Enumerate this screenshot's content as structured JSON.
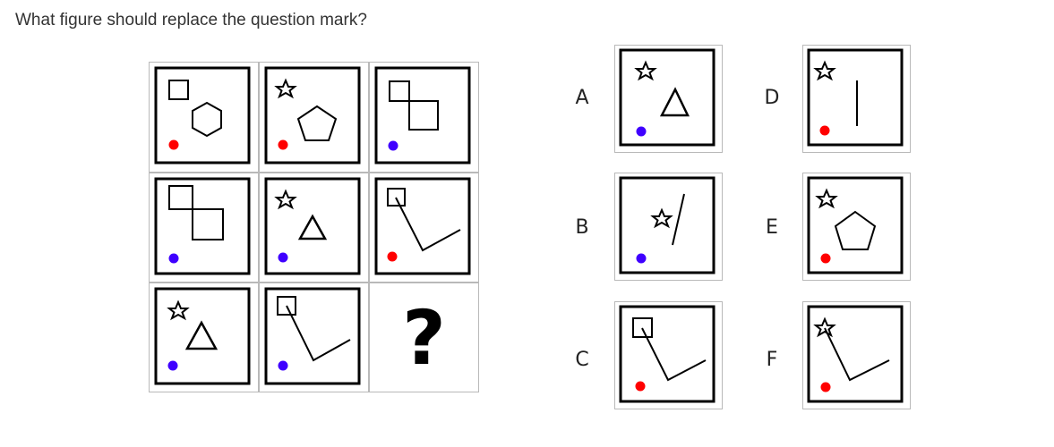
{
  "question": "What figure should replace the question mark?",
  "grid": {
    "missing_symbol": "?",
    "cells": [
      {
        "position": "row1-col1",
        "shapes": [
          "small-square",
          "hexagon",
          "red-dot"
        ]
      },
      {
        "position": "row1-col2",
        "shapes": [
          "star",
          "pentagon",
          "red-dot"
        ]
      },
      {
        "position": "row1-col3",
        "shapes": [
          "two-linked-squares",
          "blue-dot"
        ]
      },
      {
        "position": "row2-col1",
        "shapes": [
          "two-linked-squares",
          "blue-dot"
        ]
      },
      {
        "position": "row2-col2",
        "shapes": [
          "star",
          "triangle",
          "blue-dot"
        ]
      },
      {
        "position": "row2-col3",
        "shapes": [
          "small-square",
          "v-line",
          "red-dot"
        ]
      },
      {
        "position": "row3-col1",
        "shapes": [
          "star",
          "triangle",
          "blue-dot"
        ]
      },
      {
        "position": "row3-col2",
        "shapes": [
          "small-square",
          "v-line",
          "blue-dot"
        ]
      },
      {
        "position": "row3-col3",
        "shapes": [
          "question-mark"
        ]
      }
    ]
  },
  "options": [
    {
      "label": "A",
      "shapes": [
        "star",
        "triangle",
        "blue-dot"
      ]
    },
    {
      "label": "B",
      "shapes": [
        "star",
        "slash-line",
        "blue-dot"
      ]
    },
    {
      "label": "C",
      "shapes": [
        "small-square",
        "v-line",
        "red-dot"
      ]
    },
    {
      "label": "D",
      "shapes": [
        "star",
        "vertical-line",
        "red-dot"
      ]
    },
    {
      "label": "E",
      "shapes": [
        "star",
        "pentagon",
        "red-dot"
      ]
    },
    {
      "label": "F",
      "shapes": [
        "star",
        "v-line",
        "red-dot"
      ]
    }
  ],
  "colors": {
    "red_dot": "#ff0000",
    "blue_dot": "#3f00ff",
    "grid_line": "#b9b9b9",
    "stroke": "#000000"
  }
}
